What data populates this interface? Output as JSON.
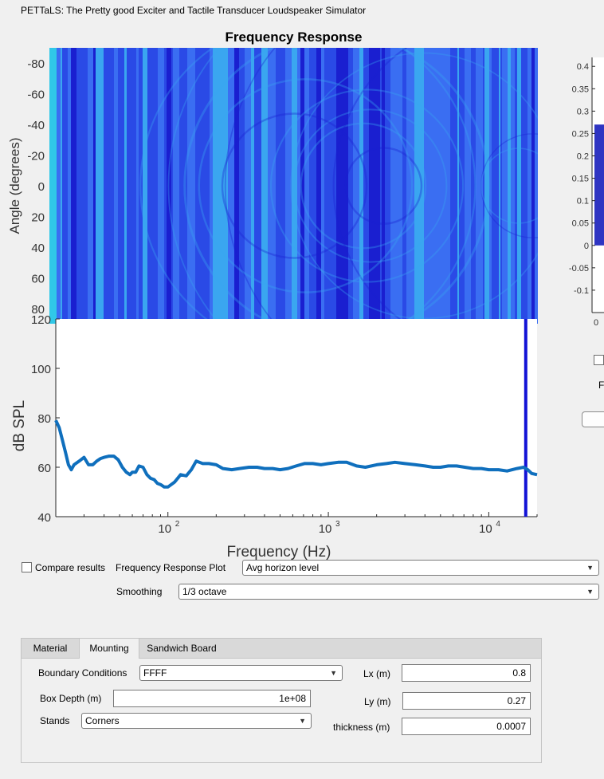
{
  "app": {
    "title": "PETTaLS: The Pretty good Exciter and Tactile Transducer Loudspeaker Simulator"
  },
  "heatmap": {
    "title": "Frequency Response",
    "ylabel": "Angle (degrees)",
    "ytick_labels": [
      "-80",
      "-60",
      "-40",
      "-20",
      "0",
      "20",
      "40",
      "60",
      "80"
    ]
  },
  "chart_data": [
    {
      "type": "heatmap",
      "title": "Frequency Response",
      "ylabel": "Angle (degrees)",
      "y_ticks": [
        -80,
        -60,
        -40,
        -20,
        0,
        20,
        40,
        60,
        80
      ],
      "ylim": [
        -90,
        90
      ],
      "xscale": "log",
      "xlim": [
        20,
        20000
      ],
      "colormap": [
        "#1a1fd0",
        "#2a4ae6",
        "#3a6ef2",
        "#3aa6f0",
        "#30c8e8"
      ]
    },
    {
      "type": "line",
      "title": "",
      "xlabel": "Frequency (Hz)",
      "ylabel": "dB SPL",
      "xscale": "log",
      "xlim": [
        20,
        20000
      ],
      "ylim": [
        40,
        120
      ],
      "y_ticks": [
        40,
        60,
        80,
        100,
        120
      ],
      "x_tick_labels": [
        "10",
        "10",
        "10"
      ],
      "x_tick_exponents": [
        "2",
        "3",
        "4"
      ],
      "series": [
        {
          "name": "Avg horizon level",
          "color": "#0f6fbd",
          "x": [
            20,
            21,
            22,
            23,
            24,
            25,
            26,
            28,
            30,
            32,
            34,
            36,
            38,
            40,
            43,
            46,
            49,
            52,
            55,
            58,
            60,
            63,
            66,
            70,
            74,
            78,
            82,
            86,
            90,
            95,
            100,
            110,
            120,
            130,
            140,
            150,
            165,
            180,
            200,
            220,
            250,
            280,
            320,
            360,
            400,
            450,
            500,
            560,
            630,
            710,
            800,
            900,
            1000,
            1150,
            1300,
            1500,
            1700,
            2000,
            2300,
            2600,
            3000,
            3500,
            4000,
            4500,
            5000,
            5600,
            6300,
            7100,
            8000,
            9000,
            10000,
            11500,
            13000,
            15000,
            16500,
            17500,
            18500,
            20000
          ],
          "values": [
            79,
            76,
            71,
            66,
            61,
            59,
            61,
            62.5,
            64,
            61,
            61,
            62.5,
            63.5,
            64,
            64.5,
            64.5,
            63,
            60,
            58,
            57,
            58,
            58,
            60.5,
            60,
            57,
            55.5,
            55,
            53.5,
            53,
            52,
            52,
            54,
            57,
            56.5,
            59,
            62.5,
            61.5,
            61.5,
            61,
            59.5,
            59,
            59.5,
            60,
            60,
            59.5,
            59.5,
            59,
            59.5,
            60.5,
            61.5,
            61.5,
            61,
            61.5,
            62,
            62,
            60.5,
            60,
            61,
            61.5,
            62,
            61.5,
            61,
            60.5,
            60,
            60,
            60.5,
            60.5,
            60,
            59.5,
            59.5,
            59,
            59,
            58.5,
            59.5,
            60,
            59,
            57.5,
            57
          ]
        }
      ],
      "vline": {
        "x": 17000,
        "color": "#1212d6"
      }
    },
    {
      "type": "bar",
      "title": "",
      "y_ticks": [
        0.4,
        0.35,
        0.3,
        0.25,
        0.2,
        0.15,
        0.1,
        0.05,
        0,
        -0.05,
        -0.1
      ],
      "y_tick_labels": [
        "0.4",
        "0.35",
        "0.3",
        "0.25",
        "0.2",
        "0.15",
        "0.1",
        "0.05",
        "0",
        "-0.05",
        "-0.1"
      ],
      "ylim": [
        -0.15,
        0.42
      ],
      "x_tick_labels": [
        "0"
      ],
      "bar_top": 0.27,
      "bar_bottom": 0,
      "bar_color": "#2e34c2"
    }
  ],
  "side_panel": {
    "partial_label": "F"
  },
  "controls": {
    "compare_label": "Compare results",
    "freq_plot_label": "Frequency Response Plot",
    "freq_plot_value": "Avg horizon level",
    "smoothing_label": "Smoothing",
    "smoothing_value": "1/3 octave"
  },
  "tabs": [
    {
      "label": "Material",
      "active": false
    },
    {
      "label": "Mounting",
      "active": true
    },
    {
      "label": "Sandwich Board",
      "active": false
    }
  ],
  "mounting": {
    "boundary_label": "Boundary Conditions",
    "boundary_value": "FFFF",
    "box_depth_label": "Box Depth (m)",
    "box_depth_value": "1e+08",
    "stands_label": "Stands",
    "stands_value": "Corners",
    "lx_label": "Lx (m)",
    "lx_value": "0.8",
    "ly_label": "Ly (m)",
    "ly_value": "0.27",
    "thickness_label": "thickness (m)",
    "thickness_value": "0.0007"
  }
}
